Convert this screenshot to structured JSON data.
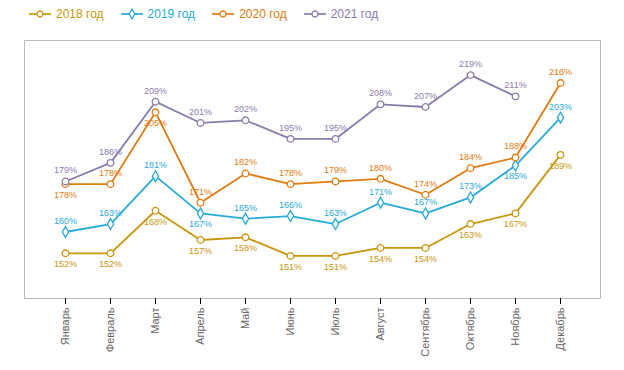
{
  "chart_data": {
    "type": "line",
    "categories": [
      "Январь",
      "Февраль",
      "Март",
      "Апрель",
      "Май",
      "Июнь",
      "Июль",
      "Август",
      "Сентябрь",
      "Октябрь",
      "Ноябрь",
      "Декабрь"
    ],
    "series": [
      {
        "name": "2018 год",
        "color": "#C8960C",
        "marker": "circle",
        "values": [
          152,
          152,
          168,
          157,
          158,
          151,
          151,
          154,
          154,
          163,
          167,
          189
        ],
        "value_labels": [
          "152%",
          "152%",
          "168%",
          "157%",
          "158%",
          "151%",
          "151%",
          "154%",
          "154%",
          "163%",
          "167%",
          "189%"
        ]
      },
      {
        "name": "2019 год",
        "color": "#27AAD8",
        "marker": "diamond",
        "values": [
          160,
          163,
          181,
          167,
          165,
          166,
          163,
          171,
          167,
          173,
          185,
          203
        ],
        "value_labels": [
          "160%",
          "163%",
          "181%",
          "167%",
          "165%",
          "166%",
          "163%",
          "171%",
          "167%",
          "173%",
          "185%",
          "203%"
        ]
      },
      {
        "name": "2020 год",
        "color": "#E07B10",
        "marker": "circle",
        "values": [
          178,
          178,
          205,
          171,
          182,
          178,
          179,
          180,
          174,
          184,
          188,
          216
        ],
        "value_labels": [
          "178%",
          "178%",
          "205%",
          "171%",
          "182%",
          "178%",
          "179%",
          "180%",
          "174%",
          "184%",
          "188%",
          "216%"
        ]
      },
      {
        "name": "2021 год",
        "color": "#8B7BAD",
        "marker": "circle",
        "values": [
          179,
          186,
          209,
          201,
          202,
          195,
          195,
          208,
          207,
          219,
          211,
          null
        ],
        "value_labels": [
          "179%",
          "186%",
          "209%",
          "201%",
          "202%",
          "195%",
          "195%",
          "208%",
          "207%",
          "219%",
          "211%",
          null
        ]
      }
    ],
    "ylim": [
      135,
      232
    ],
    "data_labels": true,
    "tick_labels": "x",
    "legend": "top"
  }
}
